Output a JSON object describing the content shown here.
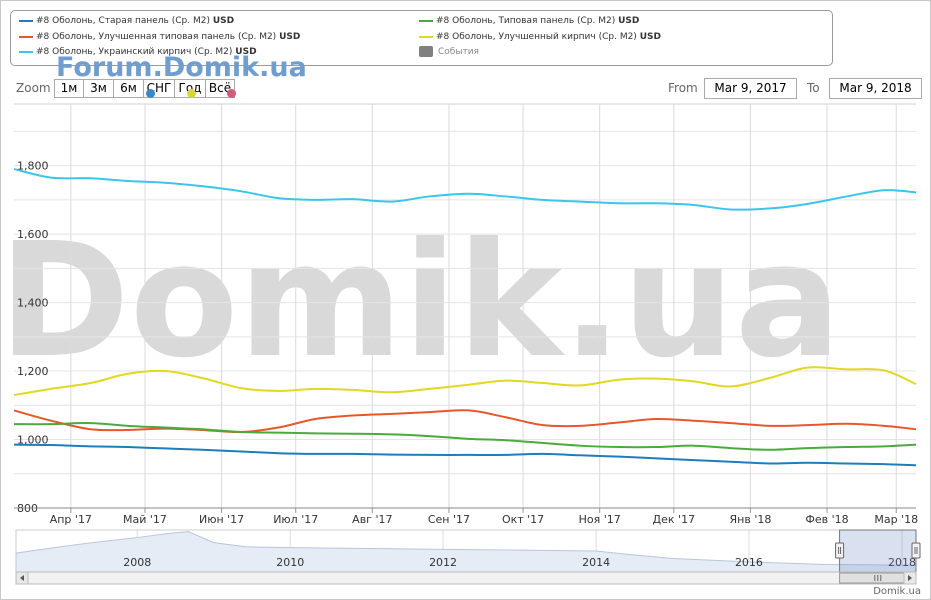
{
  "legend": [
    {
      "label": "#8 Оболонь, Старая панель (Ср. М2)",
      "unit": "USD",
      "color": "#1d7dbd"
    },
    {
      "label": "#8 Оболонь, Типовая панель (Ср. М2)",
      "unit": "USD",
      "color": "#4aaa3c"
    },
    {
      "label": "#8 Оболонь, Улучшенная типовая панель (Ср. М2)",
      "unit": "USD",
      "color": "#e8572c"
    },
    {
      "label": "#8 Оболонь, Улучшенный кирпич (Ср. М2)",
      "unit": "USD",
      "color": "#e0d821"
    },
    {
      "label": "#8 Оболонь, Украинский кирпич (Ср. М2)",
      "unit": "USD",
      "color": "#3ac6ea"
    }
  ],
  "events_legend": {
    "label": "События",
    "color": "#808080"
  },
  "watermark_small": "Forum.Domik.ua",
  "watermark_big": "Domik.ua",
  "toolbar": {
    "zoom_label": "Zoom",
    "buttons": [
      "1м",
      "3м",
      "6м",
      "СНГ",
      "Год",
      "Всё"
    ],
    "from_label": "From",
    "to_label": "To",
    "from_value": "Mar 9, 2017",
    "to_value": "Mar 9, 2018"
  },
  "event_markers": [
    "#3b86c8",
    "#d6d63c",
    "#d25a7a"
  ],
  "footer_credit": "Domik.ua",
  "chart_data": {
    "type": "line",
    "x": [
      "2017-03-09",
      "2017-03-24",
      "2017-04-09",
      "2017-04-24",
      "2017-05-09",
      "2017-05-24",
      "2017-06-09",
      "2017-06-24",
      "2017-07-09",
      "2017-07-24",
      "2017-08-09",
      "2017-08-24",
      "2017-09-09",
      "2017-09-24",
      "2017-10-09",
      "2017-10-24",
      "2017-11-09",
      "2017-11-24",
      "2017-12-09",
      "2017-12-24",
      "2018-01-09",
      "2018-01-24",
      "2018-02-09",
      "2018-02-24",
      "2018-03-09"
    ],
    "series": [
      {
        "name": "#8 Оболонь, Украинский кирпич (Ср. М2)",
        "color": "#3ac6ea",
        "values": [
          1790,
          1765,
          1763,
          1755,
          1750,
          1740,
          1725,
          1705,
          1700,
          1702,
          1695,
          1710,
          1718,
          1710,
          1700,
          1695,
          1690,
          1690,
          1685,
          1672,
          1675,
          1688,
          1710,
          1728,
          1722
        ]
      },
      {
        "name": "#8 Оболонь, Улучшенный кирпич (Ср. М2)",
        "color": "#e0d821",
        "values": [
          1130,
          1148,
          1165,
          1192,
          1200,
          1180,
          1150,
          1142,
          1148,
          1145,
          1138,
          1148,
          1160,
          1172,
          1165,
          1158,
          1175,
          1178,
          1170,
          1155,
          1180,
          1210,
          1205,
          1202,
          1162
        ]
      },
      {
        "name": "#8 Оболонь, Улучшенная типовая панель (Ср. М2)",
        "color": "#e8572c",
        "values": [
          1085,
          1055,
          1030,
          1028,
          1032,
          1028,
          1022,
          1035,
          1060,
          1070,
          1075,
          1080,
          1085,
          1065,
          1042,
          1040,
          1050,
          1060,
          1055,
          1048,
          1040,
          1042,
          1046,
          1040,
          1030
        ]
      },
      {
        "name": "#8 Оболонь, Типовая панель (Ср. М2)",
        "color": "#4aaa3c",
        "values": [
          1045,
          1045,
          1048,
          1040,
          1035,
          1030,
          1022,
          1020,
          1018,
          1017,
          1015,
          1010,
          1002,
          998,
          990,
          982,
          978,
          978,
          982,
          975,
          970,
          975,
          978,
          980,
          985
        ]
      },
      {
        "name": "#8 Оболонь, Старая панель (Ср. М2)",
        "color": "#1d7dbd",
        "values": [
          985,
          984,
          980,
          978,
          974,
          970,
          965,
          960,
          958,
          958,
          956,
          955,
          955,
          955,
          958,
          954,
          950,
          945,
          940,
          935,
          930,
          932,
          930,
          928,
          925
        ]
      }
    ],
    "ylim": [
      800,
      1980
    ],
    "yticks": [
      "800",
      "1,000",
      "1,200",
      "1,400",
      "1,600",
      "1,800"
    ],
    "xtick_labels": [
      "Апр '17",
      "Май '17",
      "Июн '17",
      "Июл '17",
      "Авг '17",
      "Сен '17",
      "Окт '17",
      "Ноя '17",
      "Дек '17",
      "Янв '18",
      "Фев '18",
      "Мар '18"
    ],
    "xtick_dates": [
      "2017-04-01",
      "2017-05-01",
      "2017-06-01",
      "2017-07-01",
      "2017-08-01",
      "2017-09-01",
      "2017-10-01",
      "2017-11-01",
      "2017-12-01",
      "2018-01-01",
      "2018-02-01",
      "2018-03-01"
    ],
    "grid": true,
    "legend_position": "top",
    "navigator": {
      "labels": [
        "2008",
        "2010",
        "2012",
        "2014",
        "2016",
        "2018"
      ],
      "label_dates": [
        "2008-01-01",
        "2010-01-01",
        "2012-01-01",
        "2014-01-01",
        "2016-01-01",
        "2018-01-01"
      ],
      "x": [
        "2006-06-01",
        "2007-01-01",
        "2007-06-01",
        "2008-01-01",
        "2008-06-01",
        "2008-09-01",
        "2009-01-01",
        "2009-06-01",
        "2010-01-01",
        "2011-01-01",
        "2012-01-01",
        "2013-01-01",
        "2014-01-01",
        "2014-06-01",
        "2015-01-01",
        "2016-01-01",
        "2017-01-01",
        "2018-03-09"
      ],
      "values": [
        0.45,
        0.6,
        0.7,
        0.82,
        0.92,
        0.96,
        0.7,
        0.6,
        0.58,
        0.56,
        0.54,
        0.52,
        0.5,
        0.42,
        0.32,
        0.24,
        0.18,
        0.16
      ],
      "range": [
        "2017-03-09",
        "2018-03-09"
      ]
    }
  }
}
